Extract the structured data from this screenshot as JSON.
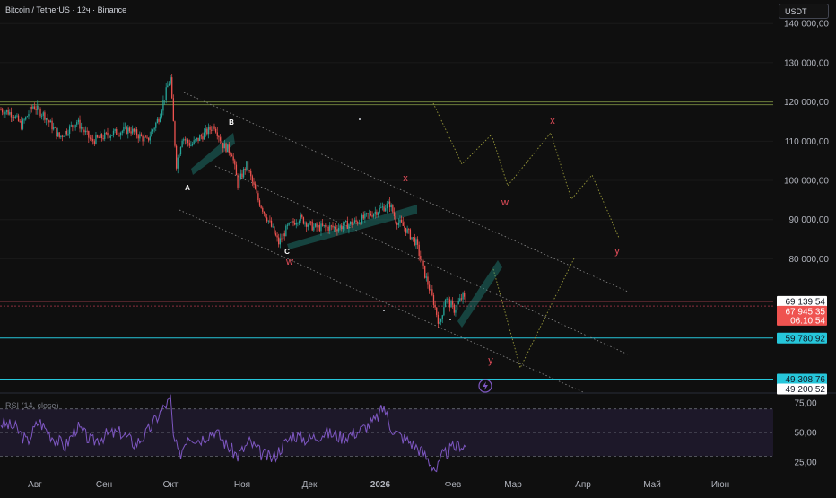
{
  "header": {
    "symbol_title": "Bitcoin / TetherUS · 12ч · Binance",
    "currency_label": "USDT"
  },
  "chart_data": {
    "type": "candlestick",
    "series": [
      {
        "name": "BTCUSDT",
        "type": "candlestick",
        "x_start": "2025-07-27",
        "interval_hours": 12,
        "start_price": 118000,
        "path_points": [
          [
            0,
            118000
          ],
          [
            8,
            117000
          ],
          [
            14,
            114000
          ],
          [
            22,
            119000
          ],
          [
            30,
            116500
          ],
          [
            40,
            111000
          ],
          [
            52,
            115000
          ],
          [
            62,
            110000
          ],
          [
            76,
            112000
          ],
          [
            88,
            113000
          ],
          [
            100,
            110000
          ],
          [
            108,
            116000
          ],
          [
            114,
            124000
          ],
          [
            116,
            126000
          ],
          [
            117,
            120000
          ],
          [
            120,
            104000
          ],
          [
            124,
            111000
          ],
          [
            130,
            109000
          ],
          [
            138,
            111500
          ],
          [
            146,
            114000
          ],
          [
            152,
            109000
          ],
          [
            158,
            107000
          ],
          [
            162,
            99000
          ],
          [
            168,
            104000
          ],
          [
            176,
            95000
          ],
          [
            184,
            89000
          ],
          [
            190,
            84000
          ],
          [
            196,
            88000
          ],
          [
            204,
            90500
          ],
          [
            214,
            88000
          ],
          [
            230,
            88000
          ],
          [
            244,
            89500
          ],
          [
            256,
            92000
          ],
          [
            266,
            94000
          ],
          [
            270,
            90000
          ],
          [
            276,
            88000
          ],
          [
            284,
            84000
          ],
          [
            290,
            76000
          ],
          [
            296,
            69000
          ],
          [
            300,
            63000
          ],
          [
            304,
            70000
          ],
          [
            310,
            67000
          ],
          [
            316,
            70500
          ],
          [
            318,
            69000
          ]
        ]
      }
    ],
    "x_tick_labels": [
      "Авг",
      "Сен",
      "Окт",
      "Ноя",
      "Дек",
      "2026",
      "Фев",
      "Мар",
      "Апр",
      "Май",
      "Июн"
    ],
    "y_tick_labels": [
      "140 000,00",
      "130 000,00",
      "120 000,00",
      "110 000,00",
      "100 000,00",
      "90 000,00",
      "80 000,00"
    ],
    "ylim": [
      46000,
      146000
    ],
    "price_labels": [
      {
        "text": "69 139,54",
        "value": 69139.54,
        "style": "white"
      },
      {
        "text": "67 945,35",
        "value": 67945.35,
        "style": "red"
      },
      {
        "text": "06:10:54",
        "style": "red"
      },
      {
        "text": "59 780,92",
        "value": 59780.92,
        "style": "cyan"
      },
      {
        "text": "49 308,76",
        "value": 49308.76,
        "style": "cyan"
      },
      {
        "text": "49 200,52",
        "value": 49200.52,
        "style": "white"
      }
    ],
    "horizontal_lines": [
      {
        "value": 120000,
        "color": "#6b7d3a"
      },
      {
        "value": 119300,
        "color": "#6b7d3a"
      },
      {
        "value": 69139.54,
        "color": "#b84a5a"
      },
      {
        "value": 67945.35,
        "color": "#8a2e3c"
      },
      {
        "value": 59780.92,
        "color": "#26c6da"
      },
      {
        "value": 49308.76,
        "color": "#26c6da"
      }
    ],
    "wave_labels": [
      {
        "text": "A",
        "color": "#ffffff"
      },
      {
        "text": "B",
        "color": "#ffffff"
      },
      {
        "text": "C",
        "color": "#ffffff"
      },
      {
        "text": "w",
        "color": "#e84e5b"
      },
      {
        "text": "x",
        "color": "#e84e5b"
      },
      {
        "text": "w",
        "color": "#e84e5b"
      },
      {
        "text": "x",
        "color": "#e84e5b"
      },
      {
        "text": "y",
        "color": "#e84e5b"
      },
      {
        "text": "y",
        "color": "#e84e5b"
      }
    ],
    "rsi": {
      "title": "RSI (14, close)",
      "levels": [
        70,
        50,
        30
      ],
      "ylim": [
        15,
        82
      ],
      "y_tick_labels": [
        "75,00",
        "50,00",
        "25,00"
      ],
      "path_points": [
        [
          0,
          58
        ],
        [
          10,
          54
        ],
        [
          18,
          42
        ],
        [
          26,
          60
        ],
        [
          34,
          48
        ],
        [
          44,
          38
        ],
        [
          52,
          55
        ],
        [
          62,
          42
        ],
        [
          72,
          48
        ],
        [
          82,
          50
        ],
        [
          92,
          40
        ],
        [
          100,
          50
        ],
        [
          108,
          65
        ],
        [
          112,
          72
        ],
        [
          116,
          78
        ],
        [
          118,
          46
        ],
        [
          122,
          30
        ],
        [
          128,
          48
        ],
        [
          136,
          44
        ],
        [
          146,
          52
        ],
        [
          154,
          40
        ],
        [
          162,
          30
        ],
        [
          170,
          42
        ],
        [
          178,
          32
        ],
        [
          186,
          28
        ],
        [
          192,
          38
        ],
        [
          200,
          48
        ],
        [
          210,
          44
        ],
        [
          222,
          50
        ],
        [
          234,
          46
        ],
        [
          246,
          52
        ],
        [
          256,
          60
        ],
        [
          262,
          72
        ],
        [
          266,
          56
        ],
        [
          272,
          48
        ],
        [
          280,
          42
        ],
        [
          288,
          34
        ],
        [
          294,
          24
        ],
        [
          298,
          18
        ],
        [
          302,
          30
        ],
        [
          308,
          36
        ],
        [
          314,
          40
        ],
        [
          318,
          38
        ]
      ]
    },
    "colors": {
      "background": "#0f0f0f",
      "up": "#26a69a",
      "down": "#ef5350",
      "rsi_line": "#7e57c2",
      "rsi_band": "#2a2140",
      "channel": "#8c8c8c",
      "forecast": "#9a9a3a"
    }
  }
}
